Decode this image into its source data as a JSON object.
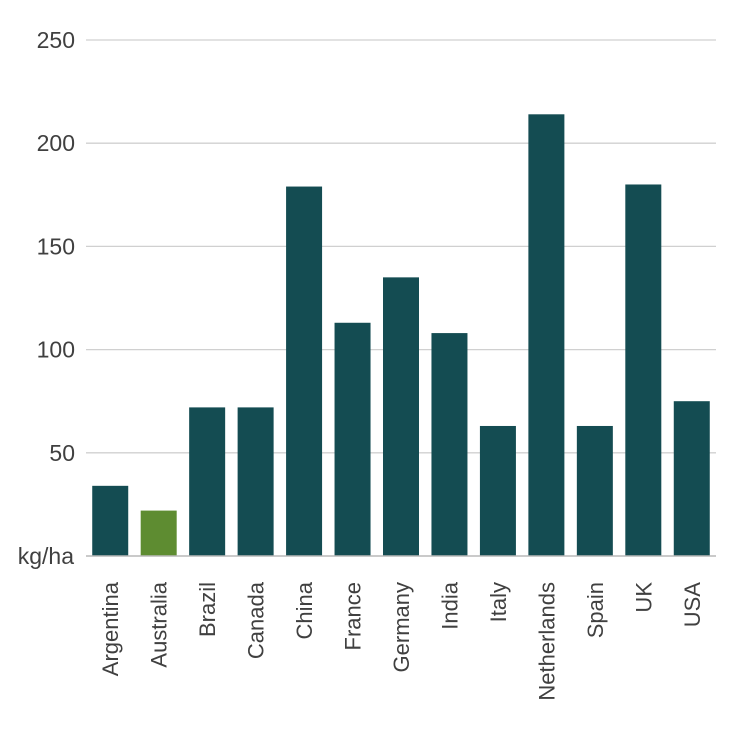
{
  "chart_data": {
    "type": "bar",
    "title": "",
    "xlabel": "",
    "ylabel": "",
    "y_unit_label": "kg/ha",
    "ylim": [
      0,
      250
    ],
    "yticks": [
      50,
      100,
      150,
      200,
      250
    ],
    "grid": true,
    "legend": "none",
    "categories": [
      "Argentina",
      "Australia",
      "Brazil",
      "Canada",
      "China",
      "France",
      "Germany",
      "India",
      "Italy",
      "Netherlands",
      "Spain",
      "UK",
      "USA"
    ],
    "values": [
      34,
      22,
      72,
      72,
      179,
      113,
      135,
      108,
      63,
      214,
      63,
      180,
      75
    ],
    "colors": {
      "default": "#144c52",
      "highlight": "#5e8c31",
      "highlight_category": "Australia"
    }
  }
}
